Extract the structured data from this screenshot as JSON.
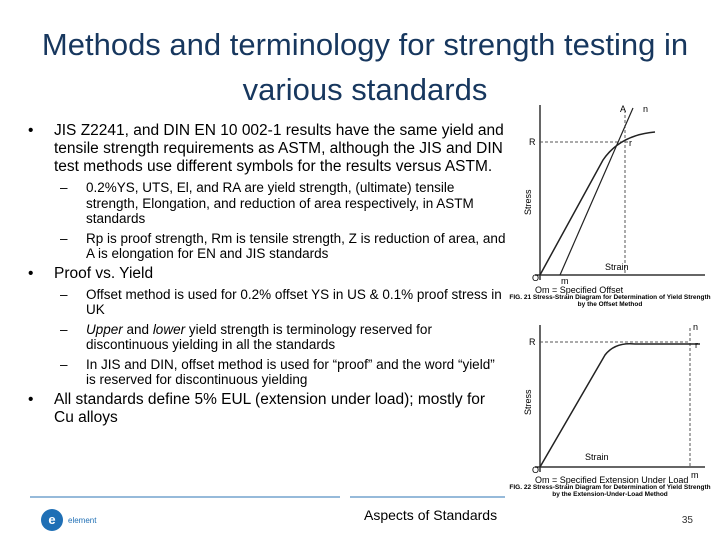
{
  "title": "Methods and terminology for strength testing in various standards",
  "bullets": [
    {
      "text": "JIS Z2241, and DIN EN 10 002-1 results have the same yield and tensile strength requirements as ASTM, although the JIS and DIN test methods use different symbols for the results versus ASTM.",
      "subs": [
        {
          "segments": [
            {
              "text": "0.2%YS, UTS, El, and RA are yield strength, (ultimate) tensile strength, Elongation, and reduction of area respectively, in ASTM standards",
              "italic": false
            }
          ]
        },
        {
          "segments": [
            {
              "text": "Rp is proof strength, Rm is tensile strength, Z is reduction of area, and A is elongation for EN and JIS standards",
              "italic": false
            }
          ]
        }
      ]
    },
    {
      "text": "Proof vs. Yield",
      "subs": [
        {
          "segments": [
            {
              "text": "Offset method is used for 0.2% offset YS in US & 0.1% proof stress in UK",
              "italic": false
            }
          ]
        },
        {
          "segments": [
            {
              "text": "Upper",
              "italic": true
            },
            {
              "text": " and ",
              "italic": false
            },
            {
              "text": "lower",
              "italic": true
            },
            {
              "text": " yield strength is terminology reserved for discontinuous yielding in all the standards",
              "italic": false
            }
          ]
        },
        {
          "segments": [
            {
              "text": "In JIS and DIN, offset method is used for “proof” and the word “yield” is reserved for discontinuous yielding",
              "italic": false
            }
          ]
        }
      ]
    },
    {
      "text": "All standards define 5% EUL (extension under load); mostly for Cu alloys",
      "subs": []
    }
  ],
  "figures": [
    {
      "label_a": "A",
      "label_n": "n",
      "label_R": "R",
      "label_r": "r",
      "y_axis": "Stress",
      "x_axis": "Strain",
      "origin": "O",
      "label_m": "m",
      "note": "Om = Specified Offset",
      "caption": "FIG. 21 Stress-Strain Diagram for Determination of Yield Strength by the Offset Method"
    },
    {
      "label_n": "n",
      "label_R": "R",
      "label_r": "r",
      "y_axis": "Stress",
      "x_axis": "Strain",
      "origin": "O",
      "label_m": "m",
      "note": "Om = Specified Extension Under Load",
      "caption": "FIG. 22 Stress-Strain Diagram for Determination of Yield Strength by the Extension-Under-Load Method"
    }
  ],
  "footer": {
    "logo": "element",
    "center": "Aspects of Standards",
    "page": "35"
  }
}
